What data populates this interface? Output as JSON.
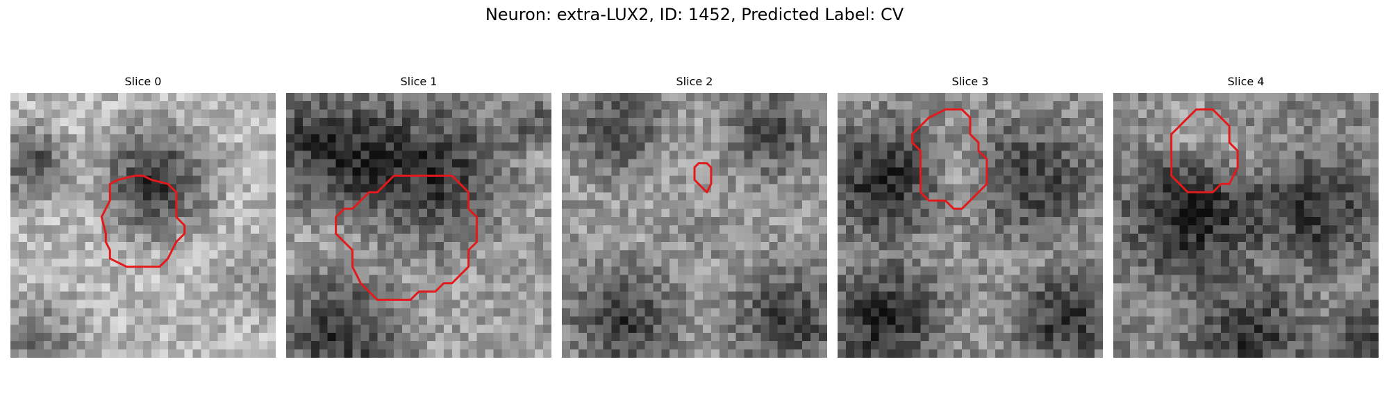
{
  "figure": {
    "title": "Neuron: extra-LUX2, ID: 1452, Predicted Label: CV"
  },
  "contour_color": "#e31a1c",
  "colormap": "gray",
  "slices": [
    {
      "title": "Slice 0"
    },
    {
      "title": "Slice 1"
    },
    {
      "title": "Slice 2"
    },
    {
      "title": "Slice 3"
    },
    {
      "title": "Slice 4"
    }
  ]
}
